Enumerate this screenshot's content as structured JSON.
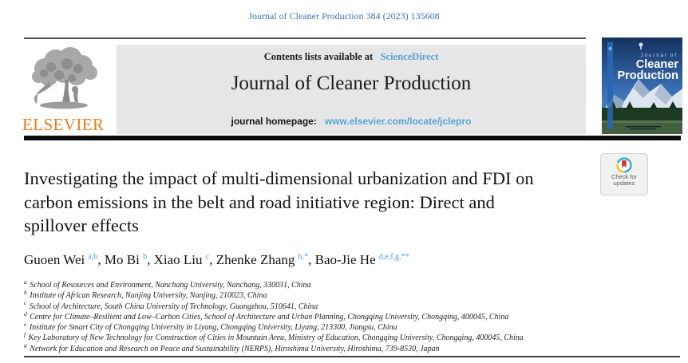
{
  "page": {
    "citation": "Journal of Cleaner Production 384 (2023) 135608"
  },
  "masthead": {
    "contents_prefix": "Contents lists available at",
    "sciencedirect_link": "ScienceDirect",
    "journal_title": "Journal of Cleaner Production",
    "homepage_prefix": "journal homepage:",
    "homepage_url": "www.elsevier.com/locate/jclepro",
    "elsevier_wordmark": "ELSEVIER",
    "cover": {
      "line1": "Journal of",
      "line2": "Cleaner",
      "line3": "Production"
    }
  },
  "badge": {
    "line1": "Check for",
    "line2": "updates"
  },
  "article": {
    "title_lines": [
      "Investigating the impact of multi-dimensional urbanization and FDI on",
      "carbon emissions in the belt and road initiative region: Direct and",
      "spillover effects"
    ],
    "authors": [
      {
        "name": "Guoen Wei",
        "sup": "a,b"
      },
      {
        "name": "Mo Bi",
        "sup": "b"
      },
      {
        "name": "Xiao Liu",
        "sup": "c"
      },
      {
        "name": "Zhenke Zhang",
        "sup": "b,*"
      },
      {
        "name": "Bao-Jie He",
        "sup": "d,e,f,g,**"
      }
    ],
    "affiliations": [
      {
        "sup": "a",
        "text": "School of Resources and Environment, Nanchang University, Nanchang, 330031, China"
      },
      {
        "sup": "b",
        "text": "Institute of African Research, Nanjing University, Nanjing, 210023, China"
      },
      {
        "sup": "c",
        "text": "School of Architecture, South China University of Technology, Guangzhou, 510641, China"
      },
      {
        "sup": "d",
        "text": "Centre for Climate–Resilient and Low–Carbon Cities, School of Architecture and Urban Planning, Chongqing University, Chongqing, 400045, China"
      },
      {
        "sup": "e",
        "text": "Institute for Smart City of Chongqing University in Liyang, Chongqing University, Liyang, 213300, Jiangsu, China"
      },
      {
        "sup": "f",
        "text": "Key Laboratory of New Technology for Construction of Cities in Mountain Area, Ministry of Education, Chongqing University, Chongqing, 400045, China"
      },
      {
        "sup": "g",
        "text": "Network for Education and Research on Peace and Sustainability (NERPS), Hiroshima University, Hiroshima, 739-8530, Japan"
      }
    ]
  },
  "colors": {
    "link_blue": "#56a5d8",
    "citation_blue": "#3b72ac",
    "elsevier_orange": "#e97c16",
    "banner_gray": "#e6e6e6",
    "badge_red": "#cf3527",
    "badge_teal": "#2fa8c5",
    "badge_yellow": "#f2c218",
    "cover_blue_dark": "#16335f",
    "cover_blue_mid": "#3a70b5"
  }
}
